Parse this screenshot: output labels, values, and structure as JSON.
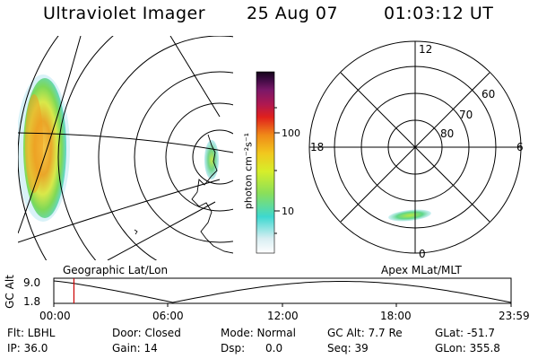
{
  "header": {
    "instrument": "Ultraviolet Imager",
    "date": "25 Aug 07",
    "time": "01:03:12 UT"
  },
  "colorbar": {
    "unit_label": "photon cm⁻²s⁻¹",
    "ticks": [
      "100",
      "10"
    ]
  },
  "polar_plot": {
    "mlt_labels": [
      "12",
      "18",
      "6",
      "0"
    ],
    "lat_labels": [
      "60",
      "70",
      "80"
    ]
  },
  "map_caption": "Geographic Lat/Lon",
  "polar_caption": "Apex  MLat/MLT",
  "timeline": {
    "axis_label": "GC Alt",
    "y_ticks": [
      "9.0",
      "1.8"
    ],
    "x_ticks": [
      "00:00",
      "06:00",
      "12:00",
      "18:00",
      "23:59"
    ],
    "current_time_fraction": 0.044
  },
  "status": {
    "row1": [
      {
        "label": "Flt: LBHL"
      },
      {
        "label": "Door: Closed"
      },
      {
        "label": "Mode: Normal"
      },
      {
        "label": "GC Alt: 7.7 Re"
      },
      {
        "label": "GLat: -51.7"
      }
    ],
    "row2": [
      {
        "label": "IP: 36.0"
      },
      {
        "label": "Gain: 14"
      },
      {
        "label": "Dsp:      0.0"
      },
      {
        "label": "Seq: 39"
      },
      {
        "label": "GLon: 355.8"
      }
    ]
  },
  "colors": {
    "trace": "#000000",
    "current_time_marker": "#cc0000"
  }
}
